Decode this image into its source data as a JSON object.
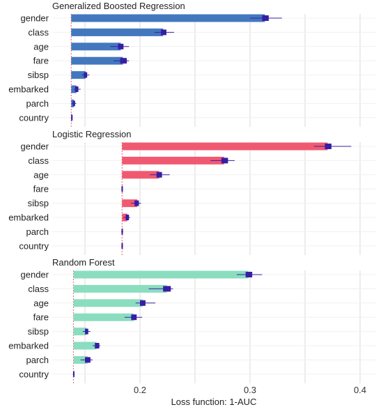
{
  "chart_data": {
    "type": "bar",
    "xlabel": "Loss function: 1-AUC",
    "x_ticks": [
      0.2,
      0.3,
      0.4
    ],
    "xlim": [
      0.1,
      0.41
    ],
    "grid": true,
    "categories": [
      "gender",
      "class",
      "age",
      "fare",
      "sibsp",
      "embarked",
      "parch",
      "country"
    ],
    "panels": [
      {
        "title": "Generalized Boosted Regression",
        "color": "#4378bf",
        "baseline": 0.1375,
        "values": [
          0.3135,
          0.221,
          0.1825,
          0.1845,
          0.1505,
          0.1422,
          0.1398,
          0.1378
        ],
        "box_low": [
          0.311,
          0.219,
          0.18,
          0.182,
          0.149,
          0.141,
          0.139,
          0.1375
        ],
        "box_high": [
          0.317,
          0.224,
          0.185,
          0.188,
          0.152,
          0.144,
          0.141,
          0.1382
        ],
        "whisk_low": [
          0.3,
          0.213,
          0.173,
          0.176,
          0.147,
          0.14,
          0.138,
          0.1374
        ],
        "whisk_high": [
          0.329,
          0.231,
          0.19,
          0.19,
          0.154,
          0.146,
          0.142,
          0.1384
        ]
      },
      {
        "title": "Logistic Regression",
        "color": "#f05a71",
        "baseline": 0.1837,
        "values": [
          0.3705,
          0.2765,
          0.2175,
          0.1837,
          0.1975,
          0.1885,
          0.1839,
          0.1837
        ],
        "box_low": [
          0.368,
          0.274,
          0.215,
          0.1832,
          0.195,
          0.187,
          0.1832,
          0.1832
        ],
        "box_high": [
          0.374,
          0.28,
          0.22,
          0.1842,
          0.199,
          0.19,
          0.1845,
          0.1842
        ],
        "whisk_low": [
          0.358,
          0.264,
          0.209,
          0.183,
          0.192,
          0.185,
          0.183,
          0.183
        ],
        "whisk_high": [
          0.392,
          0.286,
          0.227,
          0.1845,
          0.201,
          0.191,
          0.1848,
          0.1845
        ]
      },
      {
        "title": "Random Forest",
        "color": "#8bddc0",
        "baseline": 0.1395,
        "values": [
          0.2985,
          0.2245,
          0.2025,
          0.1945,
          0.1515,
          0.1605,
          0.1525,
          0.1398
        ],
        "box_low": [
          0.296,
          0.221,
          0.2,
          0.192,
          0.15,
          0.159,
          0.15,
          0.1392
        ],
        "box_high": [
          0.302,
          0.228,
          0.205,
          0.197,
          0.153,
          0.163,
          0.155,
          0.1402
        ],
        "whisk_low": [
          0.288,
          0.208,
          0.196,
          0.186,
          0.148,
          0.157,
          0.146,
          0.139
        ],
        "whisk_high": [
          0.311,
          0.23,
          0.214,
          0.202,
          0.155,
          0.164,
          0.157,
          0.1405
        ]
      }
    ]
  },
  "style": {
    "grid_color": "#d9d9d9",
    "box_color": "#371ea3",
    "baseline_line_color": "#f05a71"
  }
}
